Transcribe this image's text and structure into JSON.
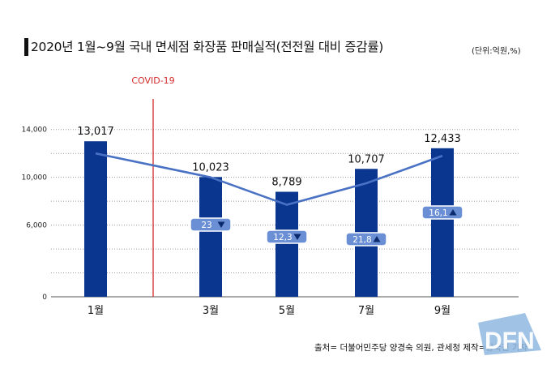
{
  "title": "2020년 1월~9월 국내 면세점 화장품 판매실적(전전월 대비 증감률)",
  "unit_note": "(단위:억원,%)",
  "source": "출처= 더불어민주당 양경숙 의원, 관세청 제작=양국진 기자",
  "logo_text": "DFN",
  "colors": {
    "bar": "#0b3690",
    "line": "#4a72c4",
    "badge": "#6b8fd4",
    "covid": "#d42a2a"
  },
  "chart_data": {
    "type": "bar",
    "categories": [
      "1월",
      "3월",
      "5월",
      "7월",
      "9월"
    ],
    "values": [
      13017,
      10023,
      8789,
      10707,
      12433
    ],
    "value_labels": [
      "13,017",
      "10,023",
      "8,789",
      "10,707",
      "12,433"
    ],
    "line_series": {
      "values": [
        12000,
        10000,
        7700,
        9500,
        11800
      ]
    },
    "change_labels": [
      {
        "category": "3월",
        "text": "23",
        "direction": "down"
      },
      {
        "category": "5월",
        "text": "12,3",
        "direction": "down"
      },
      {
        "category": "7월",
        "text": "21,8",
        "direction": "up"
      },
      {
        "category": "9월",
        "text": "16,1",
        "direction": "up"
      }
    ],
    "annotation": {
      "text": "COVID-19",
      "between": [
        "1월",
        "3월"
      ]
    },
    "y_ticks": [
      0,
      6000,
      10000,
      14000
    ],
    "y_tick_labels": [
      "0",
      "6,000",
      "10,000",
      "14,000"
    ],
    "ylim": [
      0,
      15000
    ],
    "grid": true,
    "xlabel": "",
    "ylabel": ""
  }
}
